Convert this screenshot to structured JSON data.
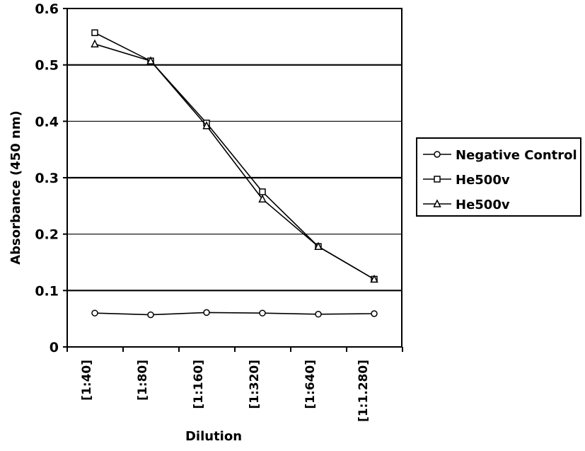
{
  "chart_data": {
    "type": "line",
    "categories": [
      "[1:40]",
      "[1:80]",
      "[1:160]",
      "[1:320]",
      "[1:640]",
      "[1:1.280]"
    ],
    "xlabel": "Dilution",
    "ylabel": "Absorbance (450 nm)",
    "ylim": [
      0,
      0.6
    ],
    "yticks": [
      "0",
      "0.1",
      "0.2",
      "0.3",
      "0.4",
      "0.5",
      "0.6"
    ],
    "grid": true,
    "legend_position": "right",
    "series": [
      {
        "name": "Negative Control",
        "marker": "circle",
        "values": [
          0.06,
          0.057,
          0.061,
          0.06,
          0.058,
          0.059
        ]
      },
      {
        "name": "He500v",
        "marker": "square",
        "values": [
          0.557,
          0.507,
          0.397,
          0.275,
          0.178,
          0.12
        ]
      },
      {
        "name": "He500v",
        "marker": "triangle",
        "values": [
          0.537,
          0.507,
          0.392,
          0.262,
          0.178,
          0.12
        ]
      }
    ]
  }
}
